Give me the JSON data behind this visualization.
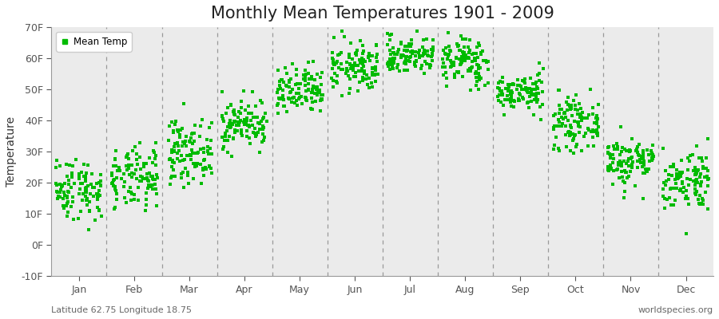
{
  "title": "Monthly Mean Temperatures 1901 - 2009",
  "ylabel": "Temperature",
  "ylim": [
    -10,
    70
  ],
  "yticks": [
    -10,
    0,
    10,
    20,
    30,
    40,
    50,
    60,
    70
  ],
  "ytick_labels": [
    "-10F",
    "0F",
    "10F",
    "20F",
    "30F",
    "40F",
    "50F",
    "60F",
    "70F"
  ],
  "months": [
    "Jan",
    "Feb",
    "Mar",
    "Apr",
    "May",
    "Jun",
    "Jul",
    "Aug",
    "Sep",
    "Oct",
    "Nov",
    "Dec"
  ],
  "dot_color": "#00BB00",
  "legend_label": "Mean Temp",
  "bottom_left": "Latitude 62.75 Longitude 18.75",
  "bottom_right": "worldspecies.org",
  "bg_color": "#EBEBEB",
  "title_fontsize": 15,
  "num_years": 109,
  "monthly_means_F": [
    18,
    21,
    30,
    39,
    49,
    57,
    61,
    59,
    49,
    39,
    27,
    21
  ],
  "monthly_stds_F": [
    5,
    5,
    5,
    4,
    4,
    4,
    3,
    4,
    3,
    4,
    4,
    5
  ]
}
